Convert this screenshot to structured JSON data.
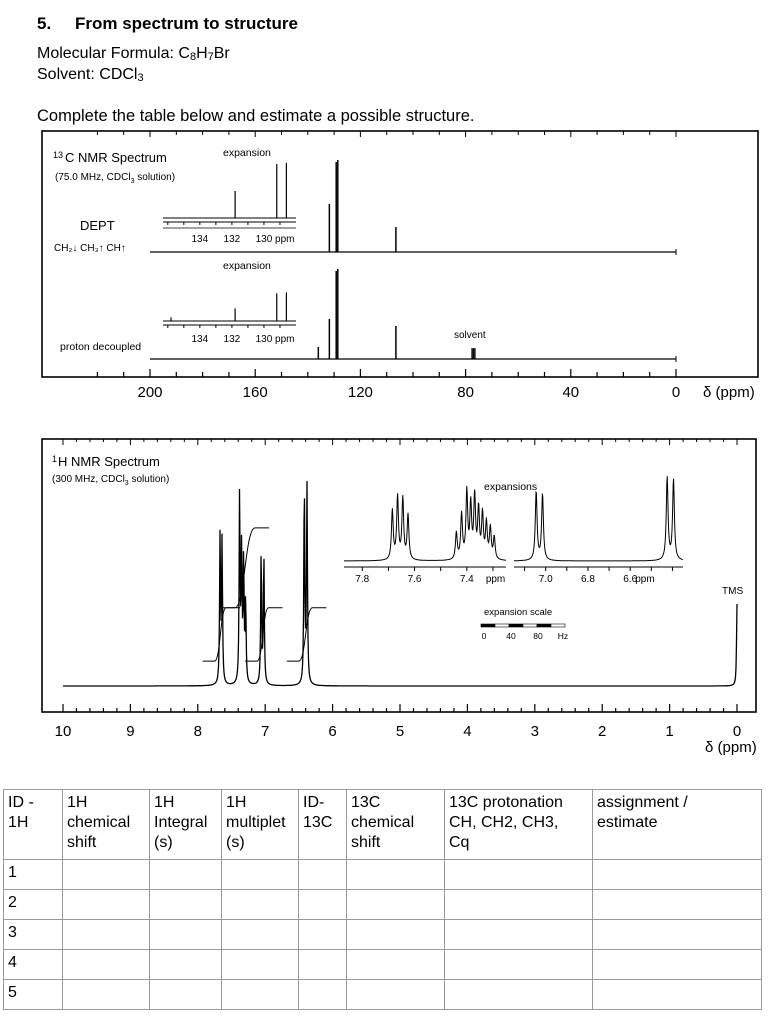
{
  "heading": {
    "number": "5.",
    "title": "From spectrum to structure"
  },
  "molecular_formula": {
    "label": "Molecular Formula: ",
    "parts": [
      {
        "t": "C",
        "sub": false
      },
      {
        "t": "8",
        "sub": true
      },
      {
        "t": "H",
        "sub": false
      },
      {
        "t": "7",
        "sub": true
      },
      {
        "t": "Br",
        "sub": false
      }
    ]
  },
  "solvent": {
    "label": "Solvent: ",
    "parts": [
      {
        "t": "CDCl",
        "sub": false
      },
      {
        "t": "3",
        "sub": true
      }
    ]
  },
  "instruction": "Complete the table below and estimate a possible structure.",
  "c13": {
    "title_sup": "13",
    "title": "C  NMR Spectrum",
    "subtitle": "(75.0 MHz, CDCl",
    "subtitle_sub": "3",
    "subtitle_end": " solution)",
    "dept_label": "DEPT",
    "dept_legend": "CH₂↓ CH₃↑ CH↑",
    "decoupled_label": "proton decoupled",
    "solvent_label": "solvent",
    "expansion_label": "expansion",
    "axis_unit": "δ (ppm)"
  },
  "h1": {
    "title_sup": "1",
    "title": "H NMR Spectrum",
    "subtitle": "(300 MHz, CDCl",
    "subtitle_sub": "3",
    "subtitle_end": " solution)",
    "expansions_label": "expansions",
    "expansion_scale_label": "expansion  scale",
    "tms_label": "TMS",
    "axis_unit": "δ (ppm)"
  },
  "chart_data": [
    {
      "type": "line",
      "title": "13C NMR Spectrum (75.0 MHz, CDCl3 solution)",
      "xlabel": "δ (ppm)",
      "xlim": [
        220,
        0
      ],
      "x_ticks": [
        200,
        160,
        120,
        80,
        40,
        0
      ],
      "series": [
        {
          "name": "DEPT",
          "peaks": [
            {
              "x": 131.8,
              "height": 0.48
            },
            {
              "x": 129.2,
              "height": 0.9
            },
            {
              "x": 128.6,
              "height": 0.92
            },
            {
              "x": 106.5,
              "height": 0.25
            }
          ]
        },
        {
          "name": "proton decoupled",
          "peaks": [
            {
              "x": 136.0,
              "height": 0.12
            },
            {
              "x": 131.8,
              "height": 0.4
            },
            {
              "x": 129.2,
              "height": 0.88
            },
            {
              "x": 128.6,
              "height": 0.9
            },
            {
              "x": 106.5,
              "height": 0.33
            },
            {
              "x": 77.0,
              "height": 0.1
            }
          ]
        }
      ],
      "insets": [
        {
          "label": "expansion",
          "x_ticks": [
            134,
            132,
            130
          ],
          "unit": "ppm",
          "dept_peaks": [
            {
              "x": 131.8,
              "height": 0.45
            },
            {
              "x": 129.2,
              "height": 0.9
            },
            {
              "x": 128.6,
              "height": 0.92
            }
          ],
          "decoupled_peaks": [
            {
              "x": 135.8,
              "height": 0.12
            },
            {
              "x": 131.8,
              "height": 0.42
            },
            {
              "x": 129.2,
              "height": 0.92
            },
            {
              "x": 128.6,
              "height": 0.95
            }
          ]
        }
      ]
    },
    {
      "type": "line",
      "title": "1H NMR Spectrum (300 MHz, CDCl3 solution)",
      "xlabel": "δ (ppm)",
      "xlim": [
        10.2,
        -0.2
      ],
      "x_ticks": [
        10,
        9,
        8,
        7,
        6,
        5,
        4,
        3,
        2,
        1,
        0
      ],
      "peaks": [
        {
          "x": 7.67,
          "height": 0.72
        },
        {
          "x": 7.64,
          "height": 0.7
        },
        {
          "x": 7.38,
          "height": 0.93
        },
        {
          "x": 7.35,
          "height": 0.65
        },
        {
          "x": 7.32,
          "height": 0.6
        },
        {
          "x": 7.29,
          "height": 0.4
        },
        {
          "x": 7.06,
          "height": 0.66
        },
        {
          "x": 7.02,
          "height": 0.64
        },
        {
          "x": 6.42,
          "height": 1.0
        },
        {
          "x": 6.38,
          "height": 0.98
        },
        {
          "x": 0.0,
          "height": 0.4
        }
      ],
      "integrals": [
        {
          "from": 7.75,
          "to": 7.58,
          "y_start": 0.18,
          "y_end": 0.44
        },
        {
          "from": 7.45,
          "to": 7.15,
          "y_start": 0.44,
          "y_end": 0.83
        },
        {
          "from": 7.12,
          "to": 6.95,
          "y_start": 0.18,
          "y_end": 0.44
        },
        {
          "from": 6.5,
          "to": 6.3,
          "y_start": 0.18,
          "y_end": 0.44
        }
      ],
      "insets": [
        {
          "label": "expansions",
          "x_ticks": [
            7.8,
            7.6,
            7.4,
            7.0,
            6.8,
            6.6
          ],
          "unit": "ppm",
          "scale_ticks": [
            "0",
            "40",
            "80",
            "Hz"
          ]
        }
      ],
      "annotations": [
        "TMS"
      ]
    }
  ],
  "table": {
    "headers": [
      [
        "ID -",
        "1H"
      ],
      [
        "1H",
        "chemical",
        "shift"
      ],
      [
        "1H",
        "Integral",
        "(s)"
      ],
      [
        "1H",
        "multiplet",
        "(s)"
      ],
      [
        "ID-",
        "13C"
      ],
      [
        "13C",
        "chemical",
        "shift"
      ],
      [
        "13C protonation",
        "CH, CH2, CH3,",
        "Cq"
      ],
      [
        "assignment /",
        "estimate"
      ]
    ],
    "rows": [
      "1",
      "2",
      "3",
      "4",
      "5"
    ]
  }
}
